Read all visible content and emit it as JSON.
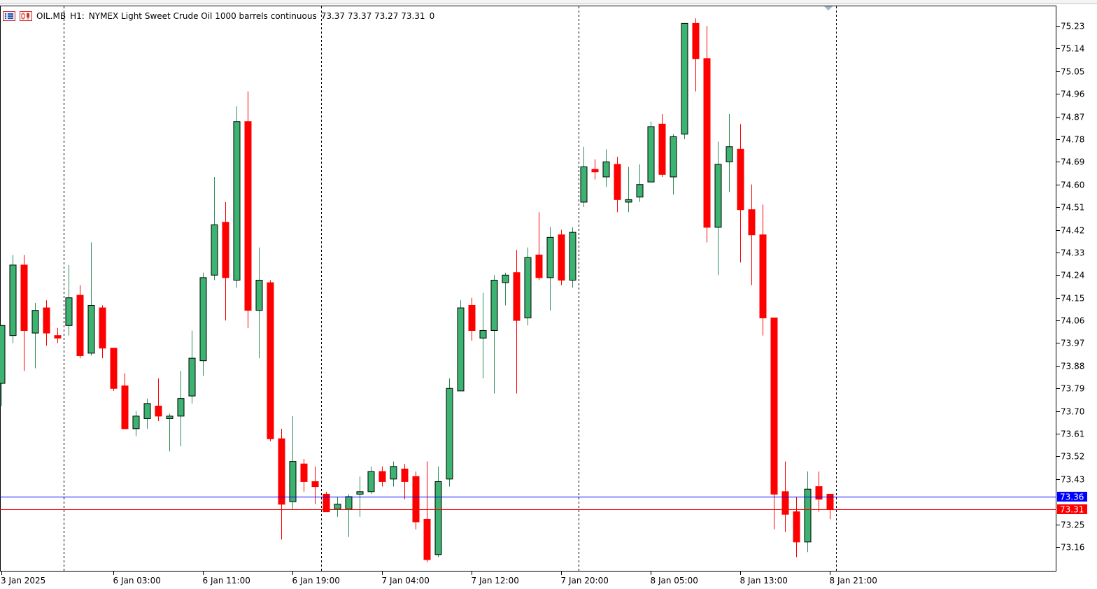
{
  "header": {
    "symbol": "OIL.MB",
    "timeframe": "H1:",
    "description": "NYMEX Light Sweet Crude Oil 1000 barrels continuous",
    "ohlc": "73.37 73.37 73.27 73.31",
    "volume": "0",
    "icons": [
      "list-view-icon",
      "candle-chart-icon"
    ]
  },
  "colors": {
    "bull": "#3cb371",
    "bear": "#ff0000",
    "outline": "#000000",
    "ask_line": "#0000ff",
    "bid_line": "#ff0000",
    "grid": "#000000",
    "axis": "#000000"
  },
  "price_labels": {
    "ask": "73.36",
    "bid": "73.31"
  },
  "chart_data": {
    "type": "candlestick",
    "title": "OIL.MB, H1",
    "ylim": [
      73.1,
      75.27
    ],
    "y_ticks": [
      "75.23",
      "75.14",
      "75.05",
      "74.96",
      "74.87",
      "74.78",
      "74.69",
      "74.60",
      "74.51",
      "74.42",
      "74.33",
      "74.24",
      "74.15",
      "74.06",
      "73.97",
      "73.88",
      "73.79",
      "73.70",
      "73.61",
      "73.52",
      "73.43",
      "73.25",
      "73.16"
    ],
    "x_tick_labels": [
      {
        "label": "3 Jan 2025",
        "bar": 0
      },
      {
        "label": "6 Jan 03:00",
        "bar": 10
      },
      {
        "label": "6 Jan 11:00",
        "bar": 18
      },
      {
        "label": "6 Jan 19:00",
        "bar": 26
      },
      {
        "label": "7 Jan 04:00",
        "bar": 34
      },
      {
        "label": "7 Jan 12:00",
        "bar": 42
      },
      {
        "label": "7 Jan 20:00",
        "bar": 50
      },
      {
        "label": "8 Jan 05:00",
        "bar": 58
      },
      {
        "label": "8 Jan 13:00",
        "bar": 66
      },
      {
        "label": "8 Jan 21:00",
        "bar": 74
      }
    ],
    "period_separators": [
      6,
      29,
      52,
      75
    ],
    "ask_price": 73.36,
    "bid_price": 73.31,
    "candles": [
      {
        "o": 73.81,
        "h": 74.04,
        "l": 73.72,
        "c": 74.04
      },
      {
        "o": 74.0,
        "h": 74.32,
        "l": 73.97,
        "c": 74.28
      },
      {
        "o": 74.28,
        "h": 74.32,
        "l": 73.86,
        "c": 74.02
      },
      {
        "o": 74.01,
        "h": 74.13,
        "l": 73.87,
        "c": 74.1
      },
      {
        "o": 74.11,
        "h": 74.14,
        "l": 73.96,
        "c": 74.01
      },
      {
        "o": 74.0,
        "h": 74.03,
        "l": 73.97,
        "c": 73.99
      },
      {
        "o": 74.04,
        "h": 74.28,
        "l": 74.0,
        "c": 74.15
      },
      {
        "o": 74.16,
        "h": 74.2,
        "l": 73.91,
        "c": 73.92
      },
      {
        "o": 73.93,
        "h": 74.37,
        "l": 73.92,
        "c": 74.12
      },
      {
        "o": 74.11,
        "h": 74.12,
        "l": 73.91,
        "c": 73.95
      },
      {
        "o": 73.95,
        "h": 73.95,
        "l": 73.78,
        "c": 73.79
      },
      {
        "o": 73.8,
        "h": 73.85,
        "l": 73.63,
        "c": 73.63
      },
      {
        "o": 73.63,
        "h": 73.7,
        "l": 73.6,
        "c": 73.68
      },
      {
        "o": 73.67,
        "h": 73.75,
        "l": 73.63,
        "c": 73.73
      },
      {
        "o": 73.72,
        "h": 73.83,
        "l": 73.66,
        "c": 73.68
      },
      {
        "o": 73.67,
        "h": 73.69,
        "l": 73.54,
        "c": 73.68
      },
      {
        "o": 73.68,
        "h": 73.86,
        "l": 73.56,
        "c": 73.75
      },
      {
        "o": 73.76,
        "h": 74.02,
        "l": 73.73,
        "c": 73.91
      },
      {
        "o": 73.9,
        "h": 74.25,
        "l": 73.84,
        "c": 74.23
      },
      {
        "o": 74.24,
        "h": 74.63,
        "l": 74.22,
        "c": 74.44
      },
      {
        "o": 74.45,
        "h": 74.53,
        "l": 74.06,
        "c": 74.23
      },
      {
        "o": 74.22,
        "h": 74.91,
        "l": 74.19,
        "c": 74.85
      },
      {
        "o": 74.85,
        "h": 74.97,
        "l": 74.03,
        "c": 74.1
      },
      {
        "o": 74.1,
        "h": 74.35,
        "l": 73.91,
        "c": 74.22
      },
      {
        "o": 74.21,
        "h": 74.22,
        "l": 73.58,
        "c": 73.59
      },
      {
        "o": 73.59,
        "h": 73.63,
        "l": 73.19,
        "c": 73.33
      },
      {
        "o": 73.34,
        "h": 73.68,
        "l": 73.31,
        "c": 73.5
      },
      {
        "o": 73.49,
        "h": 73.51,
        "l": 73.38,
        "c": 73.42
      },
      {
        "o": 73.42,
        "h": 73.48,
        "l": 73.33,
        "c": 73.4
      },
      {
        "o": 73.37,
        "h": 73.38,
        "l": 73.3,
        "c": 73.3
      },
      {
        "o": 73.31,
        "h": 73.36,
        "l": 73.28,
        "c": 73.33
      },
      {
        "o": 73.31,
        "h": 73.37,
        "l": 73.2,
        "c": 73.36
      },
      {
        "o": 73.37,
        "h": 73.44,
        "l": 73.28,
        "c": 73.38
      },
      {
        "o": 73.38,
        "h": 73.48,
        "l": 73.37,
        "c": 73.46
      },
      {
        "o": 73.46,
        "h": 73.48,
        "l": 73.4,
        "c": 73.42
      },
      {
        "o": 73.43,
        "h": 73.5,
        "l": 73.4,
        "c": 73.48
      },
      {
        "o": 73.47,
        "h": 73.49,
        "l": 73.35,
        "c": 73.42
      },
      {
        "o": 73.44,
        "h": 73.46,
        "l": 73.23,
        "c": 73.26
      },
      {
        "o": 73.27,
        "h": 73.5,
        "l": 73.1,
        "c": 73.11
      },
      {
        "o": 73.13,
        "h": 73.48,
        "l": 73.12,
        "c": 73.42
      },
      {
        "o": 73.43,
        "h": 73.83,
        "l": 73.4,
        "c": 73.79
      },
      {
        "o": 73.78,
        "h": 74.14,
        "l": 73.78,
        "c": 74.11
      },
      {
        "o": 74.12,
        "h": 74.15,
        "l": 73.98,
        "c": 74.02
      },
      {
        "o": 73.99,
        "h": 74.17,
        "l": 73.83,
        "c": 74.02
      },
      {
        "o": 74.02,
        "h": 74.24,
        "l": 73.77,
        "c": 74.22
      },
      {
        "o": 74.21,
        "h": 74.25,
        "l": 74.12,
        "c": 74.24
      },
      {
        "o": 74.25,
        "h": 74.34,
        "l": 73.77,
        "c": 74.06
      },
      {
        "o": 74.07,
        "h": 74.35,
        "l": 74.04,
        "c": 74.31
      },
      {
        "o": 74.32,
        "h": 74.49,
        "l": 74.22,
        "c": 74.23
      },
      {
        "o": 74.23,
        "h": 74.43,
        "l": 74.1,
        "c": 74.39
      },
      {
        "o": 74.4,
        "h": 74.42,
        "l": 74.2,
        "c": 74.22
      },
      {
        "o": 74.22,
        "h": 74.43,
        "l": 74.19,
        "c": 74.41
      },
      {
        "o": 74.53,
        "h": 74.75,
        "l": 74.51,
        "c": 74.67
      },
      {
        "o": 74.66,
        "h": 74.7,
        "l": 74.62,
        "c": 74.65
      },
      {
        "o": 74.63,
        "h": 74.74,
        "l": 74.59,
        "c": 74.69
      },
      {
        "o": 74.68,
        "h": 74.71,
        "l": 74.49,
        "c": 74.54
      },
      {
        "o": 74.53,
        "h": 74.67,
        "l": 74.49,
        "c": 74.54
      },
      {
        "o": 74.55,
        "h": 74.68,
        "l": 74.53,
        "c": 74.6
      },
      {
        "o": 74.61,
        "h": 74.85,
        "l": 74.61,
        "c": 74.83
      },
      {
        "o": 74.84,
        "h": 74.88,
        "l": 74.63,
        "c": 74.64
      },
      {
        "o": 74.63,
        "h": 74.8,
        "l": 74.56,
        "c": 74.79
      },
      {
        "o": 74.8,
        "h": 75.24,
        "l": 74.78,
        "c": 75.24
      },
      {
        "o": 75.24,
        "h": 75.26,
        "l": 74.97,
        "c": 75.1
      },
      {
        "o": 75.1,
        "h": 75.23,
        "l": 74.37,
        "c": 74.43
      },
      {
        "o": 74.43,
        "h": 74.77,
        "l": 74.24,
        "c": 74.68
      },
      {
        "o": 74.69,
        "h": 74.88,
        "l": 74.57,
        "c": 74.75
      },
      {
        "o": 74.74,
        "h": 74.84,
        "l": 74.29,
        "c": 74.5
      },
      {
        "o": 74.5,
        "h": 74.6,
        "l": 74.2,
        "c": 74.4
      },
      {
        "o": 74.4,
        "h": 74.52,
        "l": 74.0,
        "c": 74.07
      },
      {
        "o": 74.07,
        "h": 74.07,
        "l": 73.23,
        "c": 73.37
      },
      {
        "o": 73.38,
        "h": 73.5,
        "l": 73.22,
        "c": 73.29
      },
      {
        "o": 73.3,
        "h": 73.36,
        "l": 73.12,
        "c": 73.18
      },
      {
        "o": 73.18,
        "h": 73.46,
        "l": 73.14,
        "c": 73.39
      },
      {
        "o": 73.4,
        "h": 73.46,
        "l": 73.3,
        "c": 73.35
      },
      {
        "o": 73.37,
        "h": 73.37,
        "l": 73.27,
        "c": 73.31
      }
    ]
  }
}
